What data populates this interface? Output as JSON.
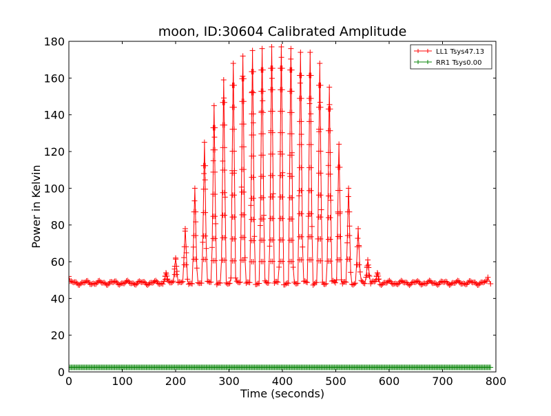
{
  "chart_data": {
    "type": "line",
    "title": "moon, ID:30604 Calibrated Amplitude",
    "xlabel": "Time (seconds)",
    "ylabel": "Power in Kelvin",
    "xlim": [
      0,
      800
    ],
    "ylim": [
      0,
      180
    ],
    "x_ticks": [
      0,
      100,
      200,
      300,
      400,
      500,
      600,
      700,
      800
    ],
    "y_ticks": [
      0,
      20,
      40,
      60,
      80,
      100,
      120,
      140,
      160,
      180
    ],
    "grid": false,
    "legend_position": "top-right",
    "marker": "plus",
    "series": [
      {
        "name": "LL1 Tsys47.13",
        "color": "#ff0000",
        "baseline": 48.5,
        "x_range": [
          0,
          790
        ],
        "edge_points": [
          [
            0,
            52
          ],
          [
            785,
            51.5
          ],
          [
            790,
            48
          ]
        ],
        "peaks": [
          {
            "x": 182,
            "y": 54
          },
          {
            "x": 200,
            "y": 62
          },
          {
            "x": 218,
            "y": 78
          },
          {
            "x": 236,
            "y": 100
          },
          {
            "x": 254,
            "y": 125
          },
          {
            "x": 272,
            "y": 145
          },
          {
            "x": 290,
            "y": 159
          },
          {
            "x": 308,
            "y": 168
          },
          {
            "x": 326,
            "y": 172
          },
          {
            "x": 344,
            "y": 175
          },
          {
            "x": 362,
            "y": 176
          },
          {
            "x": 380,
            "y": 177
          },
          {
            "x": 398,
            "y": 177
          },
          {
            "x": 416,
            "y": 176
          },
          {
            "x": 434,
            "y": 174
          },
          {
            "x": 452,
            "y": 174
          },
          {
            "x": 470,
            "y": 168
          },
          {
            "x": 488,
            "y": 155
          },
          {
            "x": 506,
            "y": 124
          },
          {
            "x": 524,
            "y": 100
          },
          {
            "x": 542,
            "y": 78
          },
          {
            "x": 560,
            "y": 61
          },
          {
            "x": 578,
            "y": 54
          }
        ]
      },
      {
        "name": "RR1 Tsys0.00",
        "color": "#008000",
        "baseline": 2.5,
        "x_range": [
          0,
          790
        ]
      }
    ]
  }
}
